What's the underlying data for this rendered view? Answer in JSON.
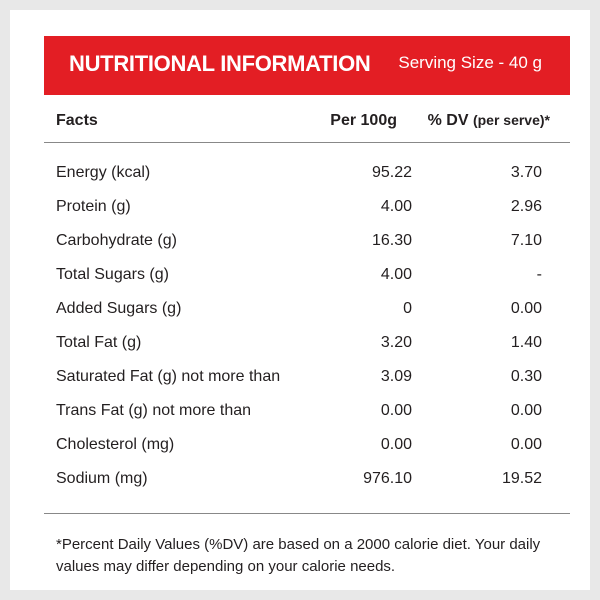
{
  "header": {
    "title": "NUTRITIONAL INFORMATION",
    "serving_size": "Serving Size - 40 g"
  },
  "table": {
    "columns": {
      "facts": "Facts",
      "per_100g": "Per 100g",
      "dv": "% DV",
      "dv_note": "(per serve)*"
    },
    "rows": [
      {
        "name": "Energy (kcal)",
        "per_100g": "95.22",
        "dv": "3.70"
      },
      {
        "name": "Protein (g)",
        "per_100g": "4.00",
        "dv": "2.96"
      },
      {
        "name": "Carbohydrate (g)",
        "per_100g": "16.30",
        "dv": "7.10"
      },
      {
        "name": "Total Sugars (g)",
        "per_100g": "4.00",
        "dv": "-"
      },
      {
        "name": "Added Sugars (g)",
        "per_100g": "0",
        "dv": "0.00"
      },
      {
        "name": "Total Fat (g)",
        "per_100g": "3.20",
        "dv": "1.40"
      },
      {
        "name": "Saturated Fat (g) not more than",
        "per_100g": "3.09",
        "dv": "0.30"
      },
      {
        "name": "Trans Fat (g) not more than",
        "per_100g": "0.00",
        "dv": "0.00"
      },
      {
        "name": "Cholesterol (mg)",
        "per_100g": "0.00",
        "dv": "0.00"
      },
      {
        "name": "Sodium (mg)",
        "per_100g": "976.10",
        "dv": "19.52"
      }
    ]
  },
  "footnote": "*Percent Daily Values (%DV) are based on a 2000 calorie diet. Your daily values may differ depending on your calorie needs.",
  "colors": {
    "header_bg": "#e31e24",
    "text": "#231f20",
    "page_bg": "#e8e8e8"
  }
}
